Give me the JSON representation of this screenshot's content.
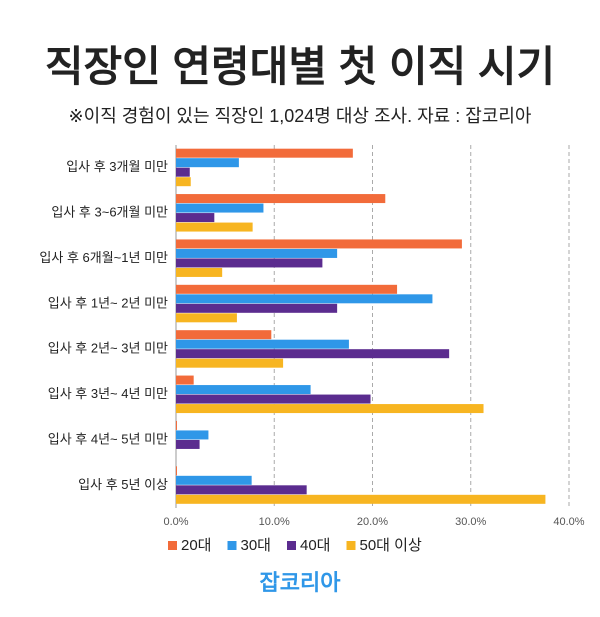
{
  "chart_data": {
    "type": "hbar",
    "title": "직장인 연령대별 첫 이직 시기",
    "subtitle": "※이직 경험이 있는 직장인 1,024명 대상 조사. 자료 : 잡코리아",
    "source": "잡코리아",
    "categories": [
      "입사 후 3개월 미만",
      "입사 후 3~6개월 미만",
      "입사 후 6개월~1년 미만",
      "입사 후 1년~ 2년 미만",
      "입사 후 2년~ 3년 미만",
      "입사 후 3년~ 4년 미만",
      "입사 후 4년~ 5년 미만",
      "입사 후 5년 이상"
    ],
    "series": [
      {
        "name": "20대",
        "color": "#f26b3a",
        "values": [
          18.0,
          21.3,
          29.1,
          22.5,
          9.7,
          1.8,
          0.1,
          0.1
        ]
      },
      {
        "name": "30대",
        "color": "#2f97e8",
        "values": [
          6.4,
          8.9,
          16.4,
          26.1,
          17.6,
          13.7,
          3.3,
          7.7
        ]
      },
      {
        "name": "40대",
        "color": "#5b2c8f",
        "values": [
          1.4,
          3.9,
          14.9,
          16.4,
          27.8,
          19.8,
          2.4,
          13.3
        ]
      },
      {
        "name": "50대 이상",
        "color": "#f7b521",
        "values": [
          1.5,
          7.8,
          4.7,
          6.2,
          10.9,
          31.3,
          0,
          37.6
        ]
      }
    ],
    "xlim": [
      0,
      40
    ],
    "xticks": [
      {
        "value": 0,
        "label": "0.0%"
      },
      {
        "value": 10,
        "label": "10.0%"
      },
      {
        "value": 20,
        "label": "20.0%"
      },
      {
        "value": 30,
        "label": "30.0%"
      },
      {
        "value": 40,
        "label": "40.0%"
      }
    ],
    "grid": true
  }
}
